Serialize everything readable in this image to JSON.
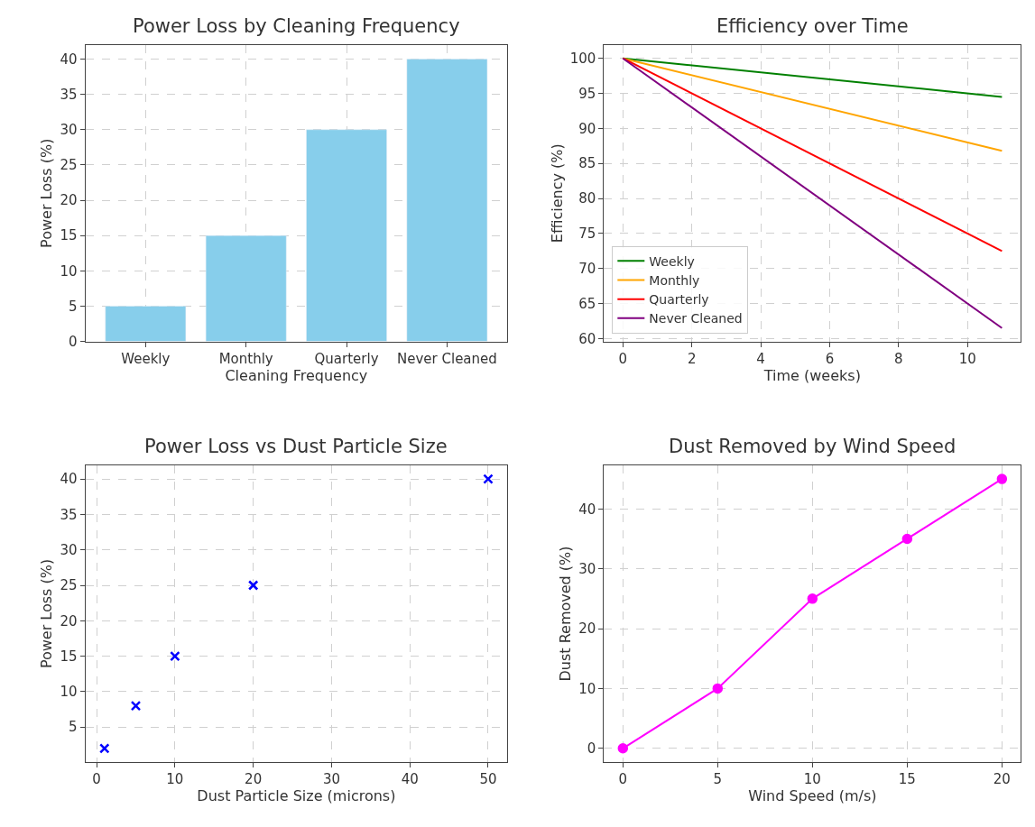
{
  "chart_data": [
    {
      "type": "bar",
      "title": "Power Loss by Cleaning Frequency",
      "xlabel": "Cleaning Frequency",
      "ylabel": "Power Loss (%)",
      "categories": [
        "Weekly",
        "Monthly",
        "Quarterly",
        "Never Cleaned"
      ],
      "values": [
        5,
        15,
        30,
        40
      ],
      "color": "#87ceeb",
      "ylim": [
        0,
        42
      ],
      "yticks": [
        0,
        5,
        10,
        15,
        20,
        25,
        30,
        35,
        40
      ],
      "grid": true
    },
    {
      "type": "line",
      "title": "Efficiency over Time",
      "xlabel": "Time (weeks)",
      "ylabel": "Efficiency (%)",
      "x": [
        0,
        11
      ],
      "series": [
        {
          "name": "Weekly",
          "color": "#008000",
          "values": [
            100,
            94.5
          ]
        },
        {
          "name": "Monthly",
          "color": "#ffa500",
          "values": [
            100,
            86.8
          ]
        },
        {
          "name": "Quarterly",
          "color": "#ff0000",
          "values": [
            100,
            72.5
          ]
        },
        {
          "name": "Never Cleaned",
          "color": "#800080",
          "values": [
            100,
            61.5
          ]
        }
      ],
      "xlim": [
        -0.55,
        11.55
      ],
      "xticks": [
        0,
        2,
        4,
        6,
        8,
        10
      ],
      "ylim": [
        59.6,
        101.9
      ],
      "yticks": [
        60,
        65,
        70,
        75,
        80,
        85,
        90,
        95,
        100
      ],
      "grid": true,
      "legend": "bottom left"
    },
    {
      "type": "scatter",
      "title": "Power Loss vs Dust Particle Size",
      "xlabel": "Dust Particle Size (microns)",
      "ylabel": "Power Loss (%)",
      "x": [
        1,
        5,
        10,
        20,
        50
      ],
      "values": [
        2,
        8,
        15,
        25,
        40
      ],
      "color": "#0000ff",
      "marker": "cross",
      "xlim": [
        -1.45,
        52.45
      ],
      "xticks": [
        0,
        10,
        20,
        30,
        40,
        50
      ],
      "ylim": [
        0.1,
        41.9
      ],
      "yticks": [
        5,
        10,
        15,
        20,
        25,
        30,
        35,
        40
      ],
      "grid": true
    },
    {
      "type": "line",
      "title": "Dust Removed by Wind Speed",
      "xlabel": "Wind Speed (m/s)",
      "ylabel": "Dust Removed (%)",
      "x": [
        0,
        5,
        10,
        15,
        20
      ],
      "values": [
        0,
        10,
        25,
        35,
        45
      ],
      "color": "#ff00ff",
      "marker": "circle",
      "xlim": [
        -1,
        21
      ],
      "xticks": [
        0,
        5,
        10,
        15,
        20
      ],
      "ylim": [
        -2.25,
        47.25
      ],
      "yticks": [
        0,
        10,
        20,
        30,
        40
      ],
      "grid": true
    }
  ]
}
